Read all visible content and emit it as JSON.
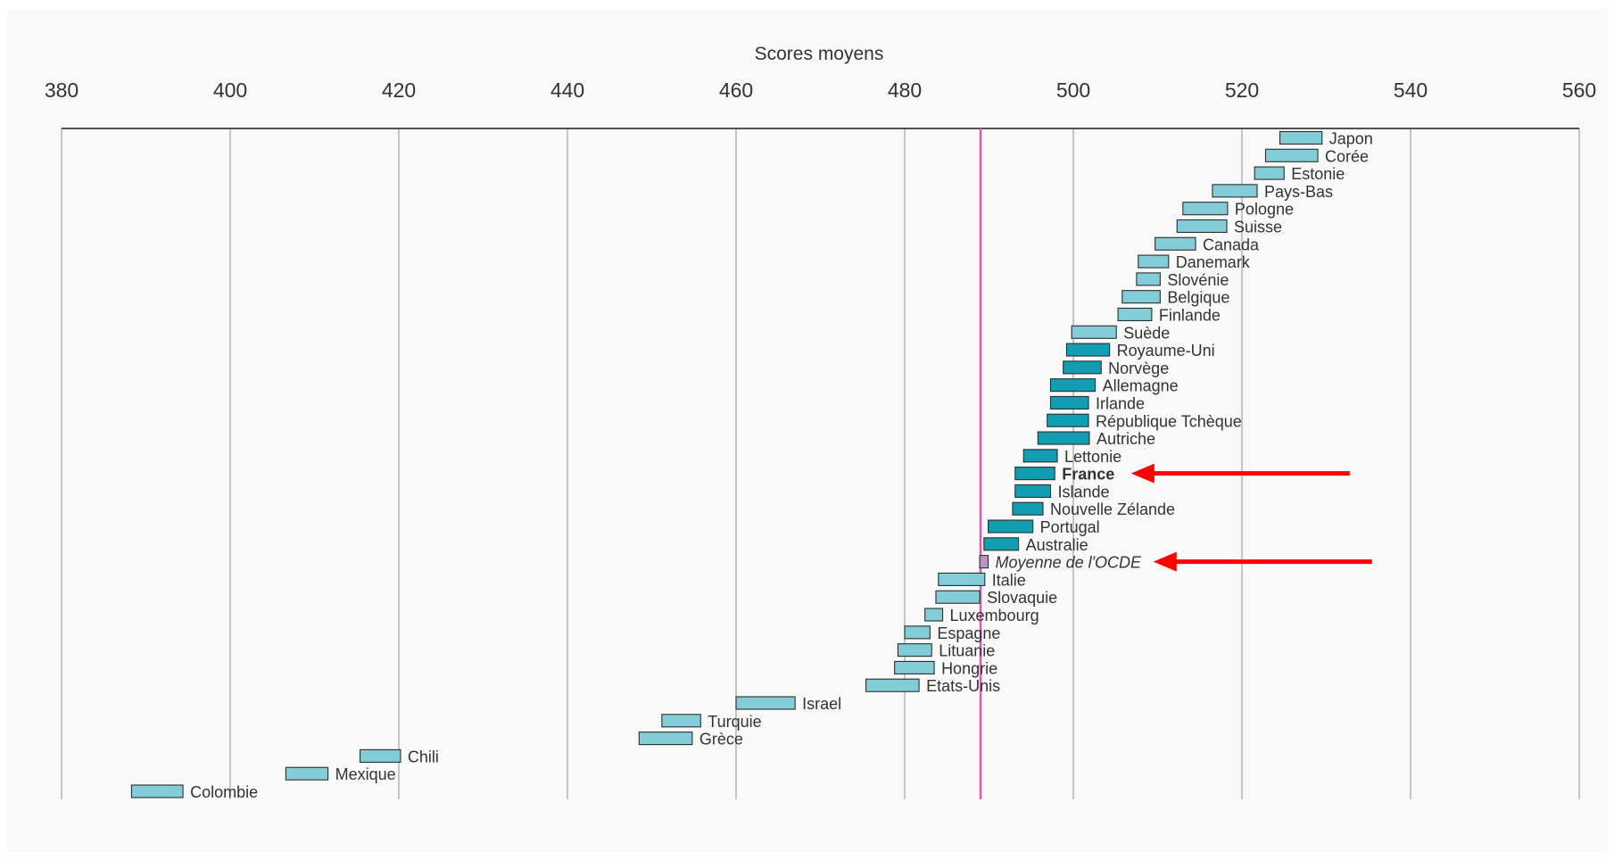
{
  "chart_data": {
    "type": "bar",
    "orientation": "horizontal-range",
    "xlabel": "Scores moyens",
    "xlim": [
      380,
      560
    ],
    "x_ticks": [
      380,
      400,
      420,
      440,
      460,
      480,
      500,
      520,
      540,
      560
    ],
    "grid": "vertical",
    "axis_position": "top",
    "reference_line": {
      "label": "Moyenne de l'OCDE",
      "value": 489,
      "color": "#d85ab3"
    },
    "colors": {
      "light_fill": "#83cdd8",
      "dark_fill": "#129eb2",
      "bar_stroke": "#2d2d2d",
      "arrow": "#ff0000"
    },
    "highlight": [
      "France",
      "Moyenne de l'OCDE"
    ],
    "items": [
      {
        "label": "Japon",
        "low": 524.5,
        "high": 529.5,
        "shade": "light"
      },
      {
        "label": "Corée",
        "low": 522.8,
        "high": 529,
        "shade": "light"
      },
      {
        "label": "Estonie",
        "low": 521.5,
        "high": 525,
        "shade": "light"
      },
      {
        "label": "Pays-Bas",
        "low": 516.5,
        "high": 521.8,
        "shade": "light"
      },
      {
        "label": "Pologne",
        "low": 513,
        "high": 518.3,
        "shade": "light"
      },
      {
        "label": "Suisse",
        "low": 512.3,
        "high": 518.2,
        "shade": "light"
      },
      {
        "label": "Canada",
        "low": 509.7,
        "high": 514.5,
        "shade": "light"
      },
      {
        "label": "Danemark",
        "low": 507.7,
        "high": 511.3,
        "shade": "light"
      },
      {
        "label": "Slovénie",
        "low": 507.5,
        "high": 510.3,
        "shade": "light"
      },
      {
        "label": "Belgique",
        "low": 505.8,
        "high": 510.3,
        "shade": "light"
      },
      {
        "label": "Finlande",
        "low": 505.3,
        "high": 509.3,
        "shade": "light"
      },
      {
        "label": "Suède",
        "low": 499.8,
        "high": 505.1,
        "shade": "light"
      },
      {
        "label": "Royaume-Uni",
        "low": 499.2,
        "high": 504.3,
        "shade": "dark"
      },
      {
        "label": "Norvège",
        "low": 498.8,
        "high": 503.3,
        "shade": "dark"
      },
      {
        "label": "Allemagne",
        "low": 497.3,
        "high": 502.6,
        "shade": "dark"
      },
      {
        "label": "Irlande",
        "low": 497.3,
        "high": 501.8,
        "shade": "dark"
      },
      {
        "label": "République Tchèque",
        "low": 496.9,
        "high": 501.8,
        "shade": "dark"
      },
      {
        "label": "Autriche",
        "low": 495.8,
        "high": 501.9,
        "shade": "dark"
      },
      {
        "label": "Lettonie",
        "low": 494.1,
        "high": 498.1,
        "shade": "dark"
      },
      {
        "label": "France",
        "low": 493.1,
        "high": 497.8,
        "shade": "dark",
        "bold": true
      },
      {
        "label": "Islande",
        "low": 493.1,
        "high": 497.3,
        "shade": "dark"
      },
      {
        "label": "Nouvelle Zélande",
        "low": 492.8,
        "high": 496.4,
        "shade": "dark"
      },
      {
        "label": "Portugal",
        "low": 489.9,
        "high": 495.2,
        "shade": "dark"
      },
      {
        "label": "Australie",
        "low": 489.4,
        "high": 493.5,
        "shade": "dark"
      },
      {
        "label": "Moyenne de l'OCDE",
        "low": 488.9,
        "high": 489.9,
        "shade": "avg",
        "italic": true
      },
      {
        "label": "Italie",
        "low": 484,
        "high": 489.5,
        "shade": "light"
      },
      {
        "label": "Slovaquie",
        "low": 483.7,
        "high": 488.9,
        "shade": "light"
      },
      {
        "label": "Luxembourg",
        "low": 482.4,
        "high": 484.5,
        "shade": "light"
      },
      {
        "label": "Espagne",
        "low": 480,
        "high": 483,
        "shade": "light"
      },
      {
        "label": "Lituanie",
        "low": 479.2,
        "high": 483.2,
        "shade": "light"
      },
      {
        "label": "Hongrie",
        "low": 478.8,
        "high": 483.5,
        "shade": "light"
      },
      {
        "label": "Etats-Unis",
        "low": 475.4,
        "high": 481.7,
        "shade": "light"
      },
      {
        "label": "Israel",
        "low": 460,
        "high": 467,
        "shade": "light"
      },
      {
        "label": "Turquie",
        "low": 451.2,
        "high": 455.8,
        "shade": "light"
      },
      {
        "label": "Grèce",
        "low": 448.5,
        "high": 454.8,
        "shade": "light"
      },
      {
        "label": "Chili",
        "low": 415.4,
        "high": 420.2,
        "shade": "light"
      },
      {
        "label": "Mexique",
        "low": 406.6,
        "high": 411.6,
        "shade": "light"
      },
      {
        "label": "Colombie",
        "low": 388.3,
        "high": 394.4,
        "shade": "light"
      }
    ]
  }
}
